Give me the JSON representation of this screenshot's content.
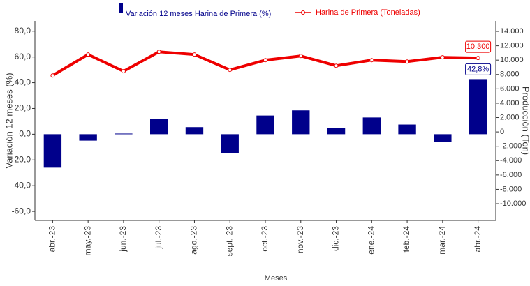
{
  "chart_data": {
    "type": "bar_line",
    "x_label": "Meses",
    "y_label": "Variación 12 meses (%)",
    "y2_label": "Producción (Ton)",
    "categories": [
      "abr.-23",
      "may.-23",
      "jun.-23",
      "jul.-23",
      "ago.-23",
      "sept.-23",
      "oct.-23",
      "nov.-23",
      "dic.-23",
      "ene.-24",
      "feb.-24",
      "mar.-24",
      "abr.-24"
    ],
    "series": [
      {
        "name": "Variación 12 meses Harina de Primera (%)",
        "type": "bar",
        "color": "#00008b",
        "values": [
          -26,
          -5,
          0.5,
          12,
          5.5,
          -14.5,
          14.5,
          18.5,
          5,
          13,
          7.5,
          -6,
          42.8
        ],
        "value_labels": [
          null,
          null,
          null,
          null,
          null,
          null,
          null,
          null,
          null,
          null,
          null,
          null,
          "42,8%"
        ]
      },
      {
        "name": "Harina de Primera (Toneladas)",
        "type": "line",
        "axis": "y2",
        "color": "#ee0000",
        "values": [
          7860,
          10780,
          8450,
          11160,
          10780,
          8640,
          10000,
          10580,
          9220,
          10000,
          9800,
          10390,
          10300
        ],
        "value_labels": [
          null,
          null,
          null,
          null,
          null,
          null,
          null,
          null,
          null,
          null,
          null,
          null,
          "10.300"
        ]
      }
    ],
    "ylim": [
      -67,
      88
    ],
    "yticks": [
      {
        "value": -60,
        "label": "-60,0"
      },
      {
        "value": -40,
        "label": "-40,0"
      },
      {
        "value": -20,
        "label": "-20,0"
      },
      {
        "value": 0,
        "label": "0,0"
      },
      {
        "value": 20,
        "label": "20,0"
      },
      {
        "value": 40,
        "label": "40,0"
      },
      {
        "value": 60,
        "label": "60,0"
      },
      {
        "value": 80,
        "label": "80,0"
      }
    ],
    "y2lim": [
      -12330,
      15460
    ],
    "y2ticks": [
      {
        "value": -10000,
        "label": "-10.000"
      },
      {
        "value": -8000,
        "label": "-8.000"
      },
      {
        "value": -6000,
        "label": "-6.000"
      },
      {
        "value": -4000,
        "label": "-4.000"
      },
      {
        "value": -2000,
        "label": "-2.000"
      },
      0,
      {
        "value": 2000,
        "label": "2.000"
      },
      {
        "value": 4000,
        "label": "4.000"
      },
      {
        "value": 6000,
        "label": "6.000"
      },
      {
        "value": 8000,
        "label": "8.000"
      },
      {
        "value": 10000,
        "label": "10.000"
      },
      {
        "value": 12000,
        "label": "12.000"
      },
      {
        "value": 14000,
        "label": "14.000"
      }
    ]
  }
}
